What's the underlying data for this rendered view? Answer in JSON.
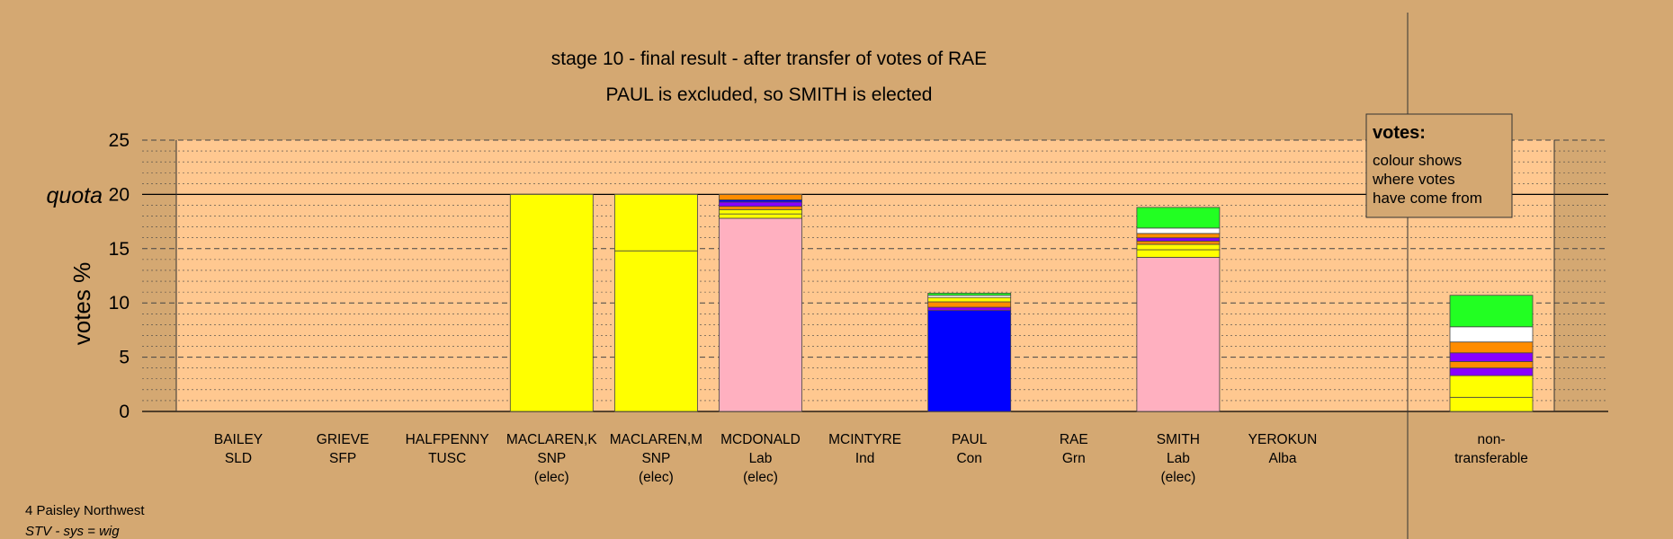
{
  "chart_data": {
    "type": "bar",
    "stacked": true,
    "title": "stage 10 - final result - after transfer of votes of RAE",
    "subtitle": "PAUL is excluded, so SMITH is elected",
    "ylabel": "votes %",
    "ylim": [
      0,
      25
    ],
    "yticks": [
      0,
      5,
      10,
      15,
      20,
      25
    ],
    "quota": 20,
    "quota_label": "quota",
    "grid": "dotted every 1, dashed every 5",
    "legend": {
      "title": "votes:",
      "lines": [
        "colour shows",
        "where votes",
        "have come from"
      ],
      "placement": "top-right"
    },
    "candidates": [
      {
        "name": "BAILEY",
        "party": "SLD",
        "status": "",
        "segments": []
      },
      {
        "name": "GRIEVE",
        "party": "SFP",
        "status": "",
        "segments": []
      },
      {
        "name": "HALFPENNY",
        "party": "TUSC",
        "status": "",
        "segments": []
      },
      {
        "name": "MACLAREN,K",
        "party": "SNP",
        "status": "(elec)",
        "segments": [
          {
            "value": 20.0,
            "color": "#ffff00"
          }
        ]
      },
      {
        "name": "MACLAREN,M",
        "party": "SNP",
        "status": "(elec)",
        "segments": [
          {
            "value": 14.8,
            "color": "#ffff00"
          },
          {
            "value": 5.2,
            "color": "#ffff00"
          }
        ]
      },
      {
        "name": "MCDONALD",
        "party": "Lab",
        "status": "(elec)",
        "segments": [
          {
            "value": 17.8,
            "color": "#ffb0c0"
          },
          {
            "value": 0.4,
            "color": "#ffff00"
          },
          {
            "value": 0.4,
            "color": "#ffff00"
          },
          {
            "value": 0.3,
            "color": "#ff8c00"
          },
          {
            "value": 0.4,
            "color": "#8800ff"
          },
          {
            "value": 0.2,
            "color": "#0000ff"
          },
          {
            "value": 0.5,
            "color": "#ff8c00"
          }
        ]
      },
      {
        "name": "MCINTYRE",
        "party": "Ind",
        "status": "",
        "segments": []
      },
      {
        "name": "PAUL",
        "party": "Con",
        "status": "",
        "segments": [
          {
            "value": 9.3,
            "color": "#0000ff"
          },
          {
            "value": 0.3,
            "color": "#8800ff"
          },
          {
            "value": 0.5,
            "color": "#ff8c00"
          },
          {
            "value": 0.4,
            "color": "#ffff00"
          },
          {
            "value": 0.2,
            "color": "#ffffff"
          },
          {
            "value": 0.2,
            "color": "#22ff22"
          }
        ]
      },
      {
        "name": "RAE",
        "party": "Grn",
        "status": "",
        "segments": []
      },
      {
        "name": "SMITH",
        "party": "Lab",
        "status": "(elec)",
        "segments": [
          {
            "value": 14.2,
            "color": "#ffb0c0"
          },
          {
            "value": 0.7,
            "color": "#ffff00"
          },
          {
            "value": 0.5,
            "color": "#ffff00"
          },
          {
            "value": 0.3,
            "color": "#ff8c00"
          },
          {
            "value": 0.3,
            "color": "#8800ff"
          },
          {
            "value": 0.4,
            "color": "#ff8c00"
          },
          {
            "value": 0.5,
            "color": "#ffffff"
          },
          {
            "value": 1.9,
            "color": "#22ff22"
          }
        ]
      },
      {
        "name": "YEROKUN",
        "party": "Alba",
        "status": "",
        "segments": []
      }
    ],
    "nontransferable": {
      "label_line1": "non-",
      "label_line2": "transferable",
      "segments": [
        {
          "value": 1.3,
          "color": "#ffff00"
        },
        {
          "value": 2.0,
          "color": "#ffff00"
        },
        {
          "value": 0.7,
          "color": "#8800ff"
        },
        {
          "value": 0.6,
          "color": "#ff8c00"
        },
        {
          "value": 0.8,
          "color": "#8800ff"
        },
        {
          "value": 1.0,
          "color": "#ff8c00"
        },
        {
          "value": 1.4,
          "color": "#ffffff"
        },
        {
          "value": 2.9,
          "color": "#22ff22"
        }
      ]
    },
    "colors": {
      "background": "#d4a872",
      "plot_area": "#ffc890"
    }
  },
  "footer": {
    "line1": "4 Paisley Northwest",
    "line2": "STV - sys = wig"
  }
}
